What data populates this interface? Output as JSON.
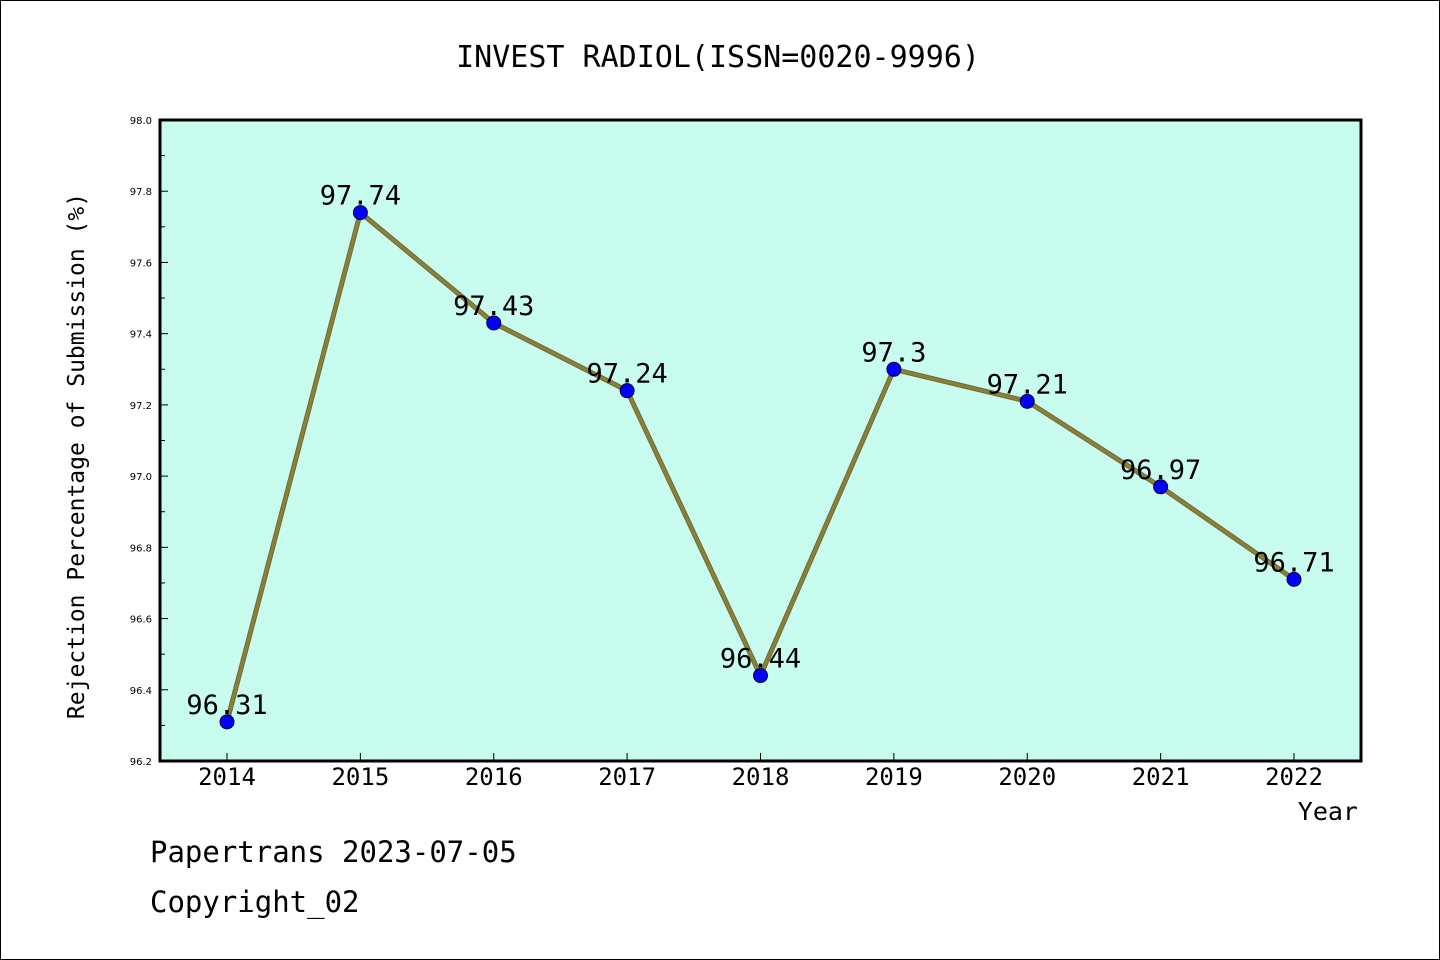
{
  "chart_data": {
    "type": "line",
    "title": "INVEST RADIOL(ISSN=0020-9996)",
    "xlabel": "Year",
    "ylabel": "Rejection Percentage of Submission (%)",
    "categories": [
      "2014",
      "2015",
      "2016",
      "2017",
      "2018",
      "2019",
      "2020",
      "2021",
      "2022"
    ],
    "values": [
      96.31,
      97.74,
      97.43,
      97.24,
      96.44,
      97.3,
      97.21,
      96.97,
      96.71
    ],
    "value_labels": [
      "96.31",
      "97.74",
      "97.43",
      "97.24",
      "96.44",
      "97.3",
      "97.21",
      "96.97",
      "96.71"
    ],
    "ylim": [
      96.2,
      98.0
    ],
    "yticks": [
      "96.2",
      "96.4",
      "96.6",
      "96.8",
      "97.0",
      "97.2",
      "97.4",
      "97.6",
      "97.8",
      "98.0"
    ],
    "grid": false,
    "colors": {
      "plot_background": "#c8fcee",
      "line": "#8b8038",
      "marker": "#0000ff"
    }
  },
  "footer": {
    "source": "Papertrans 2023-07-05",
    "copyright": "Copyright_02"
  }
}
